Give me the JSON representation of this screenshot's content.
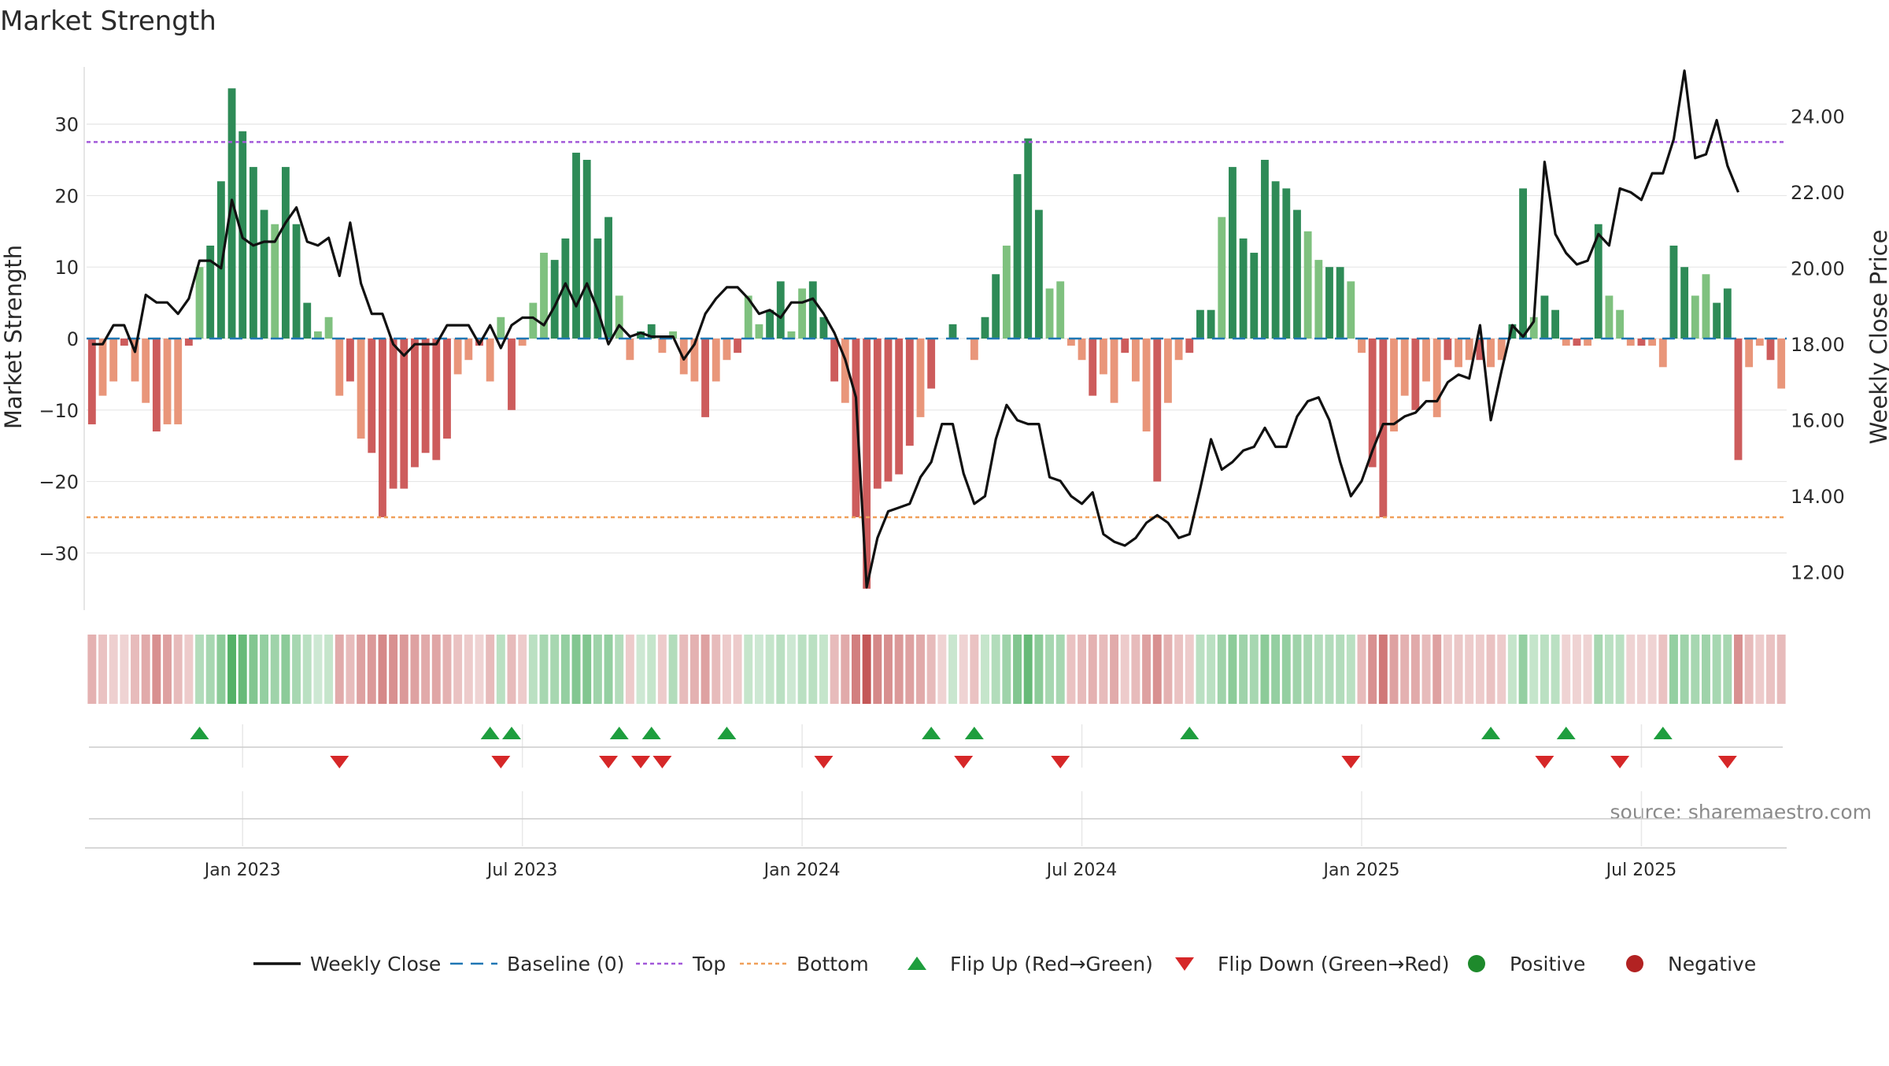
{
  "chart_data": {
    "type": "bar",
    "title": "Market Strength",
    "ylabel_left": "Market Strength",
    "ylabel_right": "Weekly Close Price",
    "source": "source: sharemaestro.com",
    "ylim_left": [
      -38,
      38
    ],
    "ylim_right": [
      11,
      25.3
    ],
    "left_ticks": [
      30,
      20,
      10,
      0,
      -10,
      -20,
      -30
    ],
    "left_tick_labels": [
      "30",
      "20",
      "10",
      "0",
      "−10",
      "−20",
      "−30"
    ],
    "right_ticks": [
      24,
      22,
      20,
      18,
      16,
      14,
      12
    ],
    "right_tick_labels": [
      "24.00",
      "22.00",
      "20.00",
      "18.00",
      "16.00",
      "14.00",
      "12.00"
    ],
    "x_tick_labels": [
      "Jan 2023",
      "Jul 2023",
      "Jan 2024",
      "Jul 2024",
      "Jan 2025",
      "Jul 2025"
    ],
    "x_tick_index": [
      14,
      40,
      66,
      92,
      118,
      144
    ],
    "top_level": 27.5,
    "bottom_level": -25,
    "grid": true,
    "legend_position": "bottom-center",
    "legend": [
      {
        "label": "Weekly Close",
        "kind": "line",
        "color": "#111111"
      },
      {
        "label": "Baseline (0)",
        "kind": "dash",
        "color": "#1f77b4"
      },
      {
        "label": "Top",
        "kind": "dot",
        "color": "#a259d9"
      },
      {
        "label": "Bottom",
        "kind": "dot",
        "color": "#f0a05a"
      },
      {
        "label": "Flip Up (Red→Green)",
        "kind": "tri-up",
        "color": "#1e9e3e"
      },
      {
        "label": "Flip Down (Green→Red)",
        "kind": "tri-down",
        "color": "#d62728"
      },
      {
        "label": "Positive",
        "kind": "circle",
        "color": "#1e8a2c"
      },
      {
        "label": "Negative",
        "kind": "circle",
        "color": "#b22222"
      }
    ],
    "colors": {
      "pos_dark": "#2e8b57",
      "pos_light": "#7fc17f",
      "neg_dark": "#cd5c5c",
      "neg_light": "#e9967a",
      "close_line": "#111111",
      "baseline": "#1f77b4",
      "top": "#a259d9",
      "bottom": "#f0a05a",
      "flip_up": "#1e9e3e",
      "flip_down": "#d62728"
    },
    "strength": [
      -12,
      -8,
      -6,
      -1,
      -6,
      -9,
      -13,
      -12,
      -12,
      -1,
      10,
      13,
      22,
      35,
      29,
      24,
      18,
      16,
      24,
      16,
      5,
      1,
      3,
      -8,
      -6,
      -14,
      -16,
      -25,
      -21,
      -21,
      -18,
      -16,
      -17,
      -14,
      -5,
      -3,
      -1,
      -6,
      3,
      -10,
      -1,
      5,
      12,
      11,
      14,
      26,
      25,
      14,
      17,
      6,
      -3,
      1,
      2,
      -2,
      1,
      -5,
      -6,
      -11,
      -6,
      -3,
      -2,
      6,
      2,
      4,
      8,
      1,
      7,
      8,
      3,
      -6,
      -9,
      -25,
      -35,
      -21,
      -20,
      -19,
      -15,
      -11,
      -7,
      0,
      2,
      0,
      -3,
      3,
      9,
      13,
      23,
      28,
      18,
      7,
      8,
      -1,
      -3,
      -8,
      -5,
      -9,
      -2,
      -6,
      -13,
      -20,
      -9,
      -3,
      -2,
      4,
      4,
      17,
      24,
      14,
      12,
      25,
      22,
      21,
      18,
      15,
      11,
      10,
      10,
      8,
      -2,
      -18,
      -25,
      -13,
      -8,
      -10,
      -6,
      -11,
      -3,
      -4,
      -3,
      -3,
      -4,
      -3,
      2,
      21,
      3,
      6,
      4,
      -1,
      -1,
      -1,
      16,
      6,
      4,
      -1,
      -1,
      -1,
      -4,
      13,
      10,
      6,
      9,
      5,
      7,
      -17,
      -4,
      -1,
      -3,
      -7
    ],
    "weekly_close": [
      18.0,
      18.0,
      18.5,
      18.5,
      17.8,
      19.3,
      19.1,
      19.1,
      18.8,
      19.2,
      20.2,
      20.2,
      20.0,
      21.8,
      20.8,
      20.6,
      20.7,
      20.7,
      21.2,
      21.6,
      20.7,
      20.6,
      20.8,
      19.8,
      21.2,
      19.6,
      18.8,
      18.8,
      18.0,
      17.7,
      18.0,
      18.0,
      18.0,
      18.5,
      18.5,
      18.5,
      18.0,
      18.5,
      17.9,
      18.5,
      18.7,
      18.7,
      18.5,
      19.0,
      19.6,
      19.0,
      19.6,
      18.9,
      18.0,
      18.5,
      18.2,
      18.3,
      18.2,
      18.2,
      18.2,
      17.6,
      18.0,
      18.8,
      19.2,
      19.5,
      19.5,
      19.2,
      18.8,
      18.9,
      18.7,
      19.1,
      19.1,
      19.2,
      18.8,
      18.3,
      17.6,
      16.6,
      11.6,
      12.9,
      13.6,
      13.7,
      13.8,
      14.5,
      14.9,
      15.9,
      15.9,
      14.6,
      13.8,
      14.0,
      15.5,
      16.4,
      16.0,
      15.9,
      15.9,
      14.5,
      14.4,
      14.0,
      13.8,
      14.1,
      13.0,
      12.8,
      12.7,
      12.9,
      13.3,
      13.5,
      13.3,
      12.9,
      13.0,
      14.2,
      15.5,
      14.7,
      14.9,
      15.2,
      15.3,
      15.8,
      15.3,
      15.3,
      16.1,
      16.5,
      16.6,
      16.0,
      14.9,
      14.0,
      14.4,
      15.2,
      15.9,
      15.9,
      16.1,
      16.2,
      16.5,
      16.5,
      17.0,
      17.2,
      17.1,
      18.5,
      16.0,
      17.3,
      18.5,
      18.2,
      18.6,
      22.8,
      20.9,
      20.4,
      20.1,
      20.2,
      20.9,
      20.6,
      22.1,
      22.0,
      21.8,
      22.5,
      22.5,
      23.4,
      25.2,
      22.9,
      23.0,
      23.9,
      22.7,
      22.0
    ],
    "bar_intensity": [
      0.35,
      0.25,
      0.18,
      0.15,
      0.3,
      0.4,
      0.55,
      0.45,
      0.3,
      0.2,
      0.3,
      0.35,
      0.5,
      0.8,
      0.7,
      0.55,
      0.45,
      0.4,
      0.5,
      0.35,
      0.25,
      0.15,
      0.2,
      0.4,
      0.3,
      0.45,
      0.5,
      0.6,
      0.55,
      0.5,
      0.45,
      0.4,
      0.42,
      0.35,
      0.25,
      0.2,
      0.15,
      0.3,
      0.25,
      0.3,
      0.2,
      0.25,
      0.35,
      0.35,
      0.45,
      0.55,
      0.55,
      0.4,
      0.45,
      0.3,
      0.2,
      0.15,
      0.2,
      0.2,
      0.3,
      0.3,
      0.35,
      0.45,
      0.3,
      0.2,
      0.2,
      0.2,
      0.15,
      0.2,
      0.25,
      0.15,
      0.25,
      0.25,
      0.2,
      0.3,
      0.4,
      0.65,
      0.9,
      0.6,
      0.55,
      0.5,
      0.45,
      0.4,
      0.3,
      0.15,
      0.18,
      0.15,
      0.25,
      0.2,
      0.3,
      0.4,
      0.55,
      0.7,
      0.5,
      0.35,
      0.35,
      0.25,
      0.3,
      0.35,
      0.3,
      0.4,
      0.2,
      0.3,
      0.45,
      0.55,
      0.35,
      0.25,
      0.2,
      0.25,
      0.25,
      0.4,
      0.5,
      0.4,
      0.35,
      0.5,
      0.45,
      0.45,
      0.4,
      0.35,
      0.3,
      0.3,
      0.3,
      0.25,
      0.3,
      0.55,
      0.7,
      0.45,
      0.35,
      0.4,
      0.3,
      0.45,
      0.2,
      0.22,
      0.2,
      0.2,
      0.25,
      0.2,
      0.2,
      0.45,
      0.2,
      0.25,
      0.25,
      0.15,
      0.15,
      0.15,
      0.35,
      0.25,
      0.25,
      0.15,
      0.15,
      0.15,
      0.25,
      0.45,
      0.4,
      0.35,
      0.4,
      0.35,
      0.35,
      0.55,
      0.3,
      0.2,
      0.25,
      0.3
    ],
    "flip_up_index": [
      10,
      37,
      39,
      49,
      52,
      59,
      78,
      82,
      102,
      130,
      137,
      146
    ],
    "flip_down_index": [
      23,
      38,
      48,
      51,
      53,
      68,
      81,
      90,
      117,
      135,
      142,
      152
    ]
  }
}
